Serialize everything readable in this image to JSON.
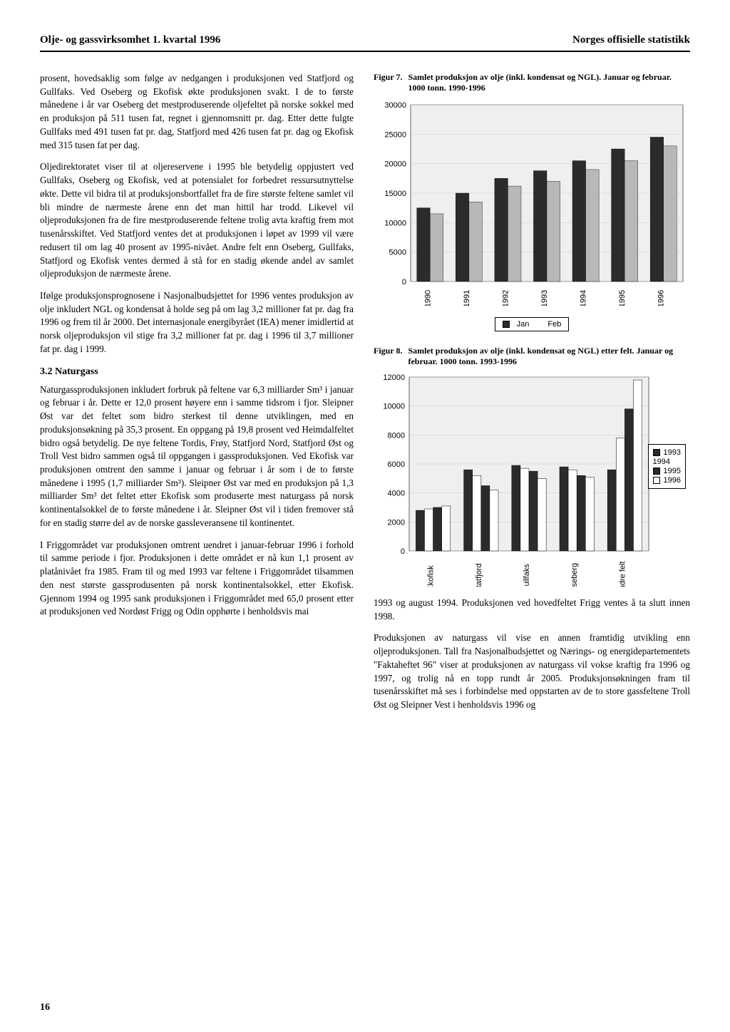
{
  "header": {
    "left": "Olje- og gassvirksomhet 1. kvartal 1996",
    "right": "Norges offisielle statistikk"
  },
  "left": {
    "p1": "prosent, hovedsaklig som følge av nedgangen i produksjonen ved Statfjord og Gullfaks. Ved Oseberg og Ekofisk økte produksjonen svakt. I de to første månedene i år var Oseberg det mestproduserende oljefeltet på norske sokkel med en produksjon på 511 tusen fat, regnet i gjennomsnitt pr. dag. Etter dette fulgte Gullfaks med 491 tusen fat pr. dag, Statfjord med 426 tusen fat pr. dag og Ekofisk med 315 tusen fat per dag.",
    "p2": "Oljedirektoratet viser til at oljereservene i 1995 ble betydelig oppjustert ved Gullfaks, Oseberg og Ekofisk, ved at potensialet for forbedret ressursutnyttelse økte. Dette vil bidra til at produksjonsbortfallet fra de fire største feltene samlet vil bli mindre de nærmeste årene enn det man hittil har trodd. Likevel vil oljeproduksjonen fra de fire mestproduserende feltene trolig avta kraftig frem mot tusenårsskiftet. Ved Statfjord ventes det at produksjonen i løpet av 1999 vil være redusert til om lag 40 prosent av 1995-nivået. Andre felt enn Oseberg, Gullfaks, Statfjord og Ekofisk ventes dermed å stå for en stadig økende andel av samlet oljeproduksjon de nærmeste årene.",
    "p3": "Ifølge produksjonsprognosene i Nasjonalbudsjettet for 1996 ventes produksjon av olje inkludert NGL og kondensat å holde seg på om lag 3,2 millioner fat pr. dag fra 1996 og frem til år 2000. Det internasjonale energibyrået (IEA) mener imidlertid at norsk oljeproduksjon vil stige fra 3,2 millioner fat pr. dag i 1996 til 3,7 millioner fat pr. dag i 1999.",
    "sec_head": "3.2 Naturgass",
    "p4": "Naturgassproduksjonen inkludert forbruk på feltene var 6,3 milliarder Sm³ i januar og februar i år. Dette er 12,0 prosent høyere enn i samme tidsrom i fjor. Sleipner Øst var det feltet som bidro sterkest til denne utviklingen, med en produksjonsøkning på 35,3 prosent. En oppgang på 19,8 prosent ved Heimdalfeltet bidro også betydelig. De nye feltene Tordis, Frøy, Statfjord Nord, Statfjord Øst og Troll Vest bidro sammen også til oppgangen i gassproduksjonen. Ved Ekofisk var produksjonen omtrent den samme i januar og februar i år som i de to første månedene i 1995 (1,7 milliarder Sm³). Sleipner Øst var med en produksjon på 1,3 milliarder Sm³ det feltet etter Ekofisk som produserte mest naturgass på norsk kontinentalsokkel de to første månedene i år. Sleipner Øst vil i tiden fremover stå for en stadig større del av de norske gassleveransene til kontinentet.",
    "p5": "I Friggområdet var produksjonen omtrent uendret i januar-februar 1996 i forhold til samme periode i fjor. Produksjonen i dette området er nå kun 1,1 prosent av platånivået fra 1985. Fram til og med 1993 var feltene i Friggområdet tilsammen den nest største gassprodusenten på norsk kontinentalsokkel, etter Ekofisk. Gjennom 1994 og 1995 sank produksjonen i Friggområdet med 65,0 prosent etter at produksjonen ved Nordøst Frigg og Odin opphørte i henholdsvis mai"
  },
  "fig7": {
    "num": "Figur 7.",
    "title": "Samlet produksjon av olje (inkl. kondensat og NGL). Januar og februar. 1000 tonn. 1990-1996",
    "type": "bar",
    "ylim": [
      0,
      30000
    ],
    "ytick_step": 5000,
    "yticks": [
      "0",
      "5000",
      "10000",
      "15000",
      "20000",
      "25000",
      "30000"
    ],
    "years": [
      "1990",
      "1991",
      "1992",
      "1993",
      "1994",
      "1995",
      "1996"
    ],
    "jan": [
      12500,
      15000,
      17500,
      18800,
      20500,
      22500,
      24500
    ],
    "feb": [
      11500,
      13500,
      16200,
      17000,
      19000,
      20500,
      23000
    ],
    "colors": {
      "jan": "#2b2b2b",
      "feb": "#b8b8b8"
    },
    "legend": {
      "jan": "Jan",
      "feb": "Feb"
    },
    "background": "#efefef",
    "grid": "#cfcfcf",
    "bar_width": 0.34
  },
  "fig8": {
    "num": "Figur 8.",
    "title": "Samlet produksjon av olje (inkl. kondensat og NGL) etter felt. Januar og februar. 1000 tonn. 1993-1996",
    "type": "grouped-bar",
    "ylim": [
      0,
      12000
    ],
    "ytick_step": 2000,
    "yticks": [
      "0",
      "2000",
      "4000",
      "6000",
      "8000",
      "10000",
      "12000"
    ],
    "fields": [
      "Ekofisk",
      "Statfjord",
      "Gullfaks",
      "Oseberg",
      "Andre felt"
    ],
    "series": {
      "1993": [
        2800,
        5600,
        5900,
        5800,
        5600
      ],
      "1994": [
        2900,
        5200,
        5700,
        5600,
        7800
      ],
      "1995": [
        3000,
        4500,
        5500,
        5200,
        9800
      ],
      "1996": [
        3100,
        4200,
        5000,
        5100,
        11800
      ]
    },
    "colors": {
      "1993": "#2b2b2b",
      "1994": "#ffffff",
      "1995": "#2b2b2b",
      "1996": "#ffffff"
    },
    "borders": {
      "1993": "#000",
      "1994": "#000",
      "1995": "#000",
      "1996": "#000"
    },
    "legend": [
      "1993",
      "1994",
      "1995",
      "1996"
    ],
    "legend_fill": [
      "#2b2b2b",
      "#ffffff",
      "#2b2b2b",
      "#ffffff"
    ],
    "background": "#efefef",
    "grid": "#cfcfcf",
    "bar_width": 0.18
  },
  "right": {
    "p1": "1993 og august 1994. Produksjonen ved hovedfeltet Frigg ventes å ta slutt innen 1998.",
    "p2": "Produksjonen av naturgass vil vise en annen framtidig utvikling enn oljeproduksjonen. Tall fra Nasjonalbudsjettet og Nærings- og energidepartementets \"Faktaheftet 96\" viser at produksjonen av naturgass vil vokse kraftig fra 1996 og 1997, og trolig nå en topp rundt år 2005. Produksjonsøkningen fram til tusenårsskiftet må ses i forbindelse med oppstarten av de to store gassfeltene Troll Øst og Sleipner Vest i henholdsvis 1996 og"
  },
  "pagenum": "16"
}
